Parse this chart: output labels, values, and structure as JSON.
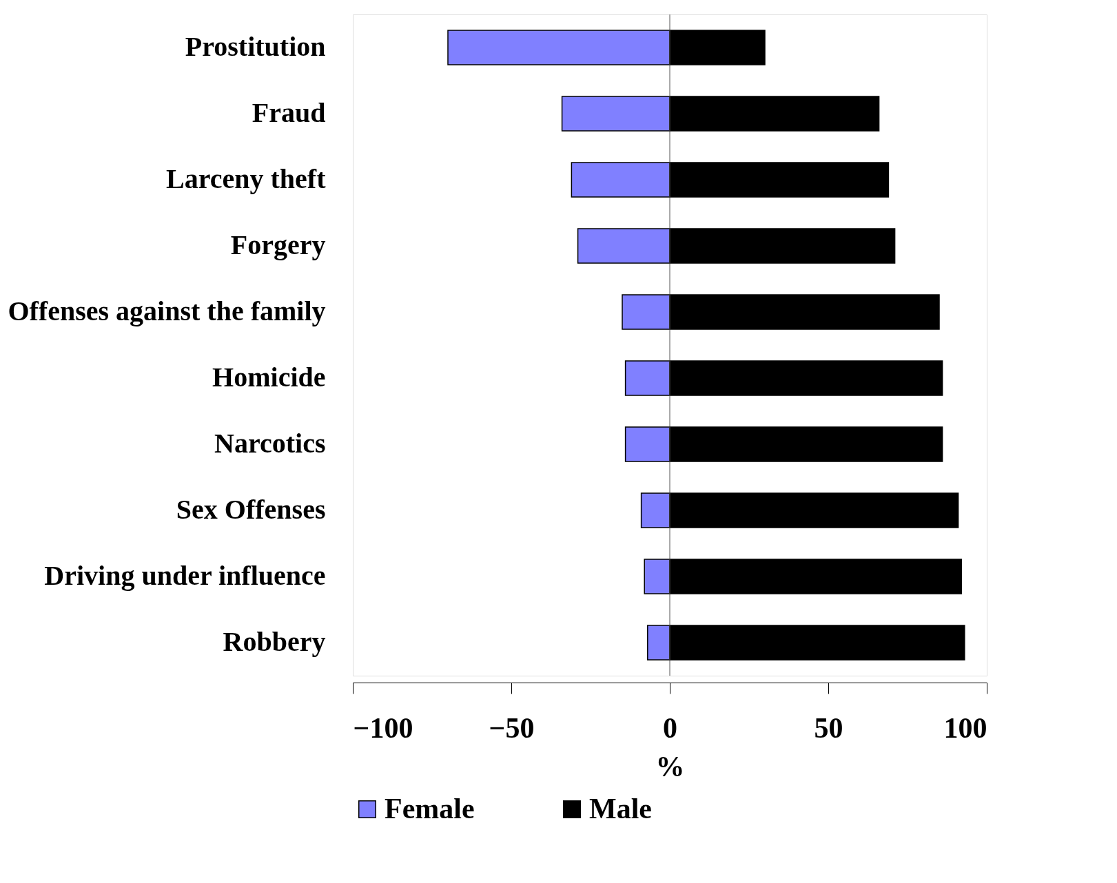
{
  "chart_data": {
    "type": "bar",
    "orientation": "horizontal",
    "stacked": true,
    "xlabel": "%",
    "categories": [
      "Prostitution",
      "Fraud",
      "Larceny theft",
      "Forgery",
      "Offenses against the family",
      "Homicide",
      "Narcotics",
      "Sex Offenses",
      "Driving under influence",
      "Robbery"
    ],
    "series": [
      {
        "name": "Female",
        "color": "#8080ff",
        "values": [
          -70,
          -34,
          -31,
          -29,
          -15,
          -14,
          -14,
          -9,
          -8,
          -7
        ]
      },
      {
        "name": "Male",
        "color": "#000000",
        "values": [
          30,
          66,
          69,
          71,
          85,
          86,
          86,
          91,
          92,
          93
        ]
      }
    ],
    "xlim": [
      -100,
      100
    ],
    "xticks": [
      -100,
      -50,
      0,
      50,
      100
    ],
    "ref_lines": [
      {
        "axis": "x",
        "value": 0
      }
    ],
    "grid": false,
    "legend": "bottom"
  }
}
